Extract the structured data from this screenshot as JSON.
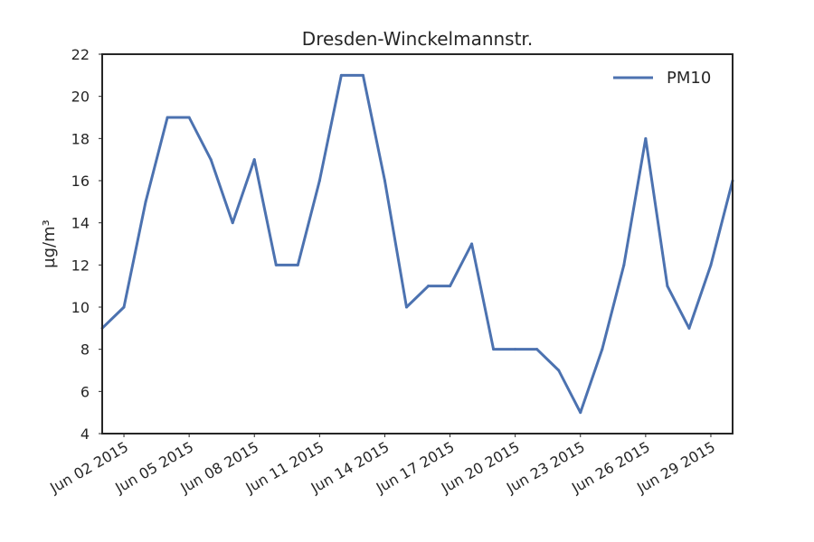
{
  "chart_data": {
    "type": "line",
    "title": "Dresden-Winckelmannstr.",
    "xlabel": "",
    "ylabel": "µg/m³",
    "ylim": [
      4,
      22
    ],
    "yticks": [
      4,
      6,
      8,
      10,
      12,
      14,
      16,
      18,
      20,
      22
    ],
    "xlim": [
      "2015-06-01",
      "2015-06-30"
    ],
    "xticks": [
      "2015-06-02",
      "2015-06-05",
      "2015-06-08",
      "2015-06-11",
      "2015-06-14",
      "2015-06-17",
      "2015-06-20",
      "2015-06-23",
      "2015-06-26",
      "2015-06-29"
    ],
    "xtick_labels": [
      "Jun 02 2015",
      "Jun 05 2015",
      "Jun 08 2015",
      "Jun 11 2015",
      "Jun 14 2015",
      "Jun 17 2015",
      "Jun 20 2015",
      "Jun 23 2015",
      "Jun 26 2015",
      "Jun 29 2015"
    ],
    "grid": false,
    "legend_position": "top-right",
    "series": [
      {
        "name": "PM10",
        "color": "#4c72b0",
        "x": [
          "2015-06-01",
          "2015-06-02",
          "2015-06-03",
          "2015-06-04",
          "2015-06-05",
          "2015-06-06",
          "2015-06-07",
          "2015-06-08",
          "2015-06-09",
          "2015-06-10",
          "2015-06-11",
          "2015-06-12",
          "2015-06-13",
          "2015-06-14",
          "2015-06-15",
          "2015-06-16",
          "2015-06-17",
          "2015-06-18",
          "2015-06-19",
          "2015-06-20",
          "2015-06-21",
          "2015-06-22",
          "2015-06-23",
          "2015-06-24",
          "2015-06-25",
          "2015-06-26",
          "2015-06-27",
          "2015-06-28",
          "2015-06-29",
          "2015-06-30"
        ],
        "values": [
          9,
          10,
          15,
          19,
          19,
          17,
          14,
          17,
          12,
          12,
          16,
          21,
          21,
          16,
          10,
          11,
          11,
          13,
          8,
          8,
          8,
          7,
          5,
          8,
          12,
          18,
          11,
          9,
          12,
          16
        ]
      }
    ]
  }
}
